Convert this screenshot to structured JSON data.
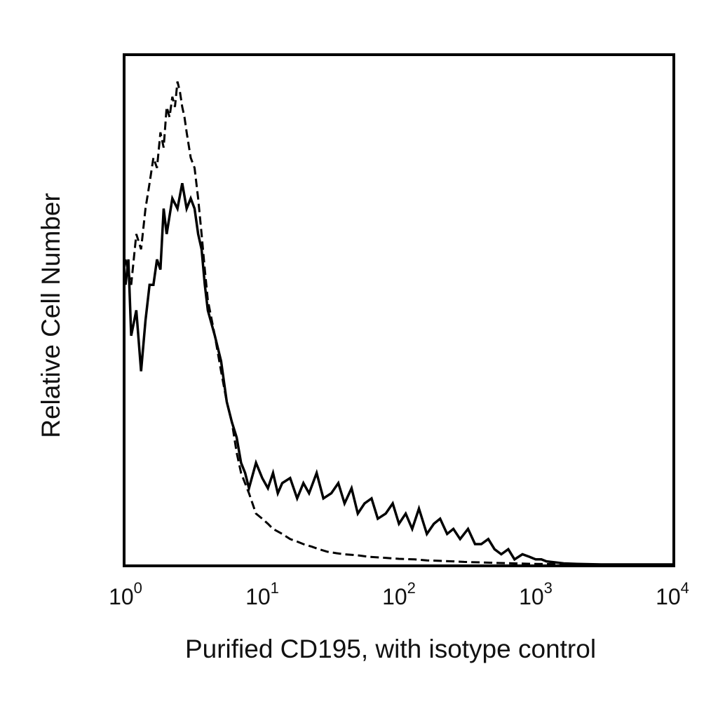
{
  "chart_data": {
    "type": "line",
    "title": "",
    "xlabel": "Purified CD195, with isotype control",
    "ylabel": "Relative Cell Number",
    "xscale": "log",
    "xlim": [
      1,
      10000
    ],
    "ylim": [
      0,
      100
    ],
    "y_ticks_shown": false,
    "grid": false,
    "legend": "none",
    "x_ticks": [
      {
        "base": "10",
        "exp": "0",
        "value": 1
      },
      {
        "base": "10",
        "exp": "1",
        "value": 10
      },
      {
        "base": "10",
        "exp": "2",
        "value": 100
      },
      {
        "base": "10",
        "exp": "3",
        "value": 1000
      },
      {
        "base": "10",
        "exp": "4",
        "value": 10000
      }
    ],
    "series": [
      {
        "style": "solid",
        "color": "#000000",
        "x": [
          1.0,
          1.05,
          1.1,
          1.2,
          1.3,
          1.4,
          1.5,
          1.6,
          1.7,
          1.8,
          1.9,
          2.0,
          2.2,
          2.4,
          2.6,
          2.8,
          3.0,
          3.2,
          3.4,
          3.6,
          3.8,
          4.0,
          4.5,
          5.0,
          5.5,
          6.0,
          6.5,
          7.0,
          7.5,
          8.0,
          9.0,
          10,
          11,
          12,
          13,
          14,
          16,
          18,
          20,
          22,
          25,
          28,
          32,
          36,
          40,
          45,
          50,
          56,
          63,
          70,
          80,
          90,
          100,
          112,
          125,
          140,
          160,
          180,
          200,
          225,
          250,
          280,
          320,
          360,
          400,
          450,
          500,
          560,
          630,
          700,
          800,
          900,
          1000,
          1100,
          1200,
          1400,
          1600,
          2000,
          3000,
          5000,
          10000
        ],
        "y": [
          55,
          60,
          45,
          50,
          38,
          48,
          55,
          55,
          60,
          58,
          70,
          65,
          72,
          70,
          75,
          70,
          72,
          70,
          65,
          62,
          55,
          50,
          45,
          40,
          32,
          28,
          25,
          20,
          18,
          15,
          20,
          17,
          15,
          18,
          14,
          16,
          17,
          13,
          16,
          14,
          18,
          13,
          14,
          16,
          12,
          15,
          10,
          12,
          13,
          9,
          10,
          12,
          8,
          10,
          7,
          11,
          6,
          8,
          9,
          6,
          7,
          5,
          7,
          4,
          4,
          5,
          3,
          2,
          3,
          1,
          2,
          1.5,
          1,
          1,
          0.6,
          0.4,
          0.2,
          0.1,
          0,
          0,
          0
        ]
      },
      {
        "style": "dashed",
        "color": "#000000",
        "x": [
          1.0,
          1.1,
          1.2,
          1.3,
          1.4,
          1.5,
          1.6,
          1.7,
          1.8,
          1.9,
          2.0,
          2.1,
          2.2,
          2.3,
          2.4,
          2.5,
          2.6,
          2.7,
          2.8,
          3.0,
          3.2,
          3.4,
          3.6,
          3.8,
          4.0,
          4.5,
          5.0,
          5.5,
          6.0,
          6.5,
          7.0,
          8.0,
          9.0,
          10,
          11,
          12,
          14,
          16,
          18,
          20,
          23,
          26,
          30,
          35,
          40,
          50,
          60,
          80,
          100,
          130,
          160,
          200,
          250,
          300,
          400,
          500,
          700,
          1000,
          2000,
          10000
        ],
        "y": [
          60,
          55,
          65,
          62,
          70,
          75,
          80,
          78,
          85,
          82,
          90,
          88,
          92,
          90,
          95,
          93,
          90,
          88,
          85,
          80,
          78,
          72,
          65,
          58,
          52,
          45,
          38,
          32,
          28,
          22,
          18,
          14,
          10,
          9,
          8,
          7,
          6,
          5,
          4.5,
          4,
          3.5,
          3,
          2.5,
          2.2,
          2,
          1.8,
          1.5,
          1.3,
          1.1,
          1,
          0.8,
          0.7,
          0.6,
          0.5,
          0.4,
          0.3,
          0.2,
          0.1,
          0,
          0
        ]
      }
    ]
  }
}
